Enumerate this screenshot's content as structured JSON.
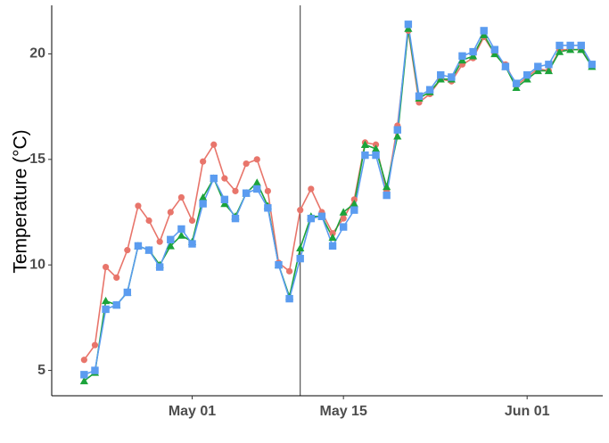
{
  "chart_data": {
    "type": "line",
    "title": "",
    "xlabel": "",
    "ylabel": "Temperature (°C)",
    "x_axis": {
      "type": "date",
      "range": [
        "2021-04-18",
        "2021-06-08"
      ],
      "ticks": [
        {
          "date": "2021-05-01",
          "label": "May 01"
        },
        {
          "date": "2021-05-15",
          "label": "May 15"
        },
        {
          "date": "2021-06-01",
          "label": "Jun 01"
        }
      ]
    },
    "y_axis": {
      "range": [
        3.8,
        22.3
      ],
      "ticks": [
        5,
        10,
        15,
        20
      ]
    },
    "grid": false,
    "legend": "none",
    "vertical_reference_line": {
      "date": "2021-05-11",
      "color": "#333333"
    },
    "series": [
      {
        "color": "#e8756b",
        "marker": "circle",
        "points": [
          [
            "2021-04-21",
            5.5
          ],
          [
            "2021-04-22",
            6.2
          ],
          [
            "2021-04-23",
            9.9
          ],
          [
            "2021-04-24",
            9.4
          ],
          [
            "2021-04-25",
            10.7
          ],
          [
            "2021-04-26",
            12.8
          ],
          [
            "2021-04-27",
            12.1
          ],
          [
            "2021-04-28",
            11.1
          ],
          [
            "2021-04-29",
            12.5
          ],
          [
            "2021-04-30",
            13.2
          ],
          [
            "2021-05-01",
            12.1
          ],
          [
            "2021-05-02",
            14.9
          ],
          [
            "2021-05-03",
            15.7
          ],
          [
            "2021-05-04",
            14.1
          ],
          [
            "2021-05-05",
            13.5
          ],
          [
            "2021-05-06",
            14.8
          ],
          [
            "2021-05-07",
            15.0
          ],
          [
            "2021-05-08",
            13.5
          ],
          [
            "2021-05-09",
            10.1
          ],
          [
            "2021-05-10",
            9.7
          ],
          [
            "2021-05-11",
            12.6
          ],
          [
            "2021-05-12",
            13.6
          ],
          [
            "2021-05-13",
            12.5
          ],
          [
            "2021-05-14",
            11.5
          ],
          [
            "2021-05-15",
            12.2
          ],
          [
            "2021-05-16",
            13.1
          ],
          [
            "2021-05-17",
            15.8
          ],
          [
            "2021-05-18",
            15.7
          ],
          [
            "2021-05-19",
            13.5
          ],
          [
            "2021-05-20",
            16.6
          ],
          [
            "2021-05-21",
            21.1
          ],
          [
            "2021-05-22",
            17.7
          ],
          [
            "2021-05-23",
            18.1
          ],
          [
            "2021-05-24",
            18.8
          ],
          [
            "2021-05-25",
            18.7
          ],
          [
            "2021-05-26",
            19.5
          ],
          [
            "2021-05-27",
            19.8
          ],
          [
            "2021-05-28",
            20.8
          ],
          [
            "2021-05-29",
            20.0
          ],
          [
            "2021-05-30",
            19.5
          ],
          [
            "2021-05-31",
            18.5
          ],
          [
            "2021-06-01",
            18.9
          ],
          [
            "2021-06-02",
            19.3
          ],
          [
            "2021-06-03",
            19.2
          ],
          [
            "2021-06-04",
            20.2
          ],
          [
            "2021-06-05",
            20.2
          ],
          [
            "2021-06-06",
            20.2
          ],
          [
            "2021-06-07",
            19.5
          ]
        ]
      },
      {
        "color": "#1ba33a",
        "marker": "triangle",
        "points": [
          [
            "2021-04-21",
            4.5
          ],
          [
            "2021-04-22",
            4.9
          ],
          [
            "2021-04-23",
            8.3
          ],
          [
            "2021-04-24",
            8.1
          ],
          [
            "2021-04-25",
            8.7
          ],
          [
            "2021-04-26",
            10.9
          ],
          [
            "2021-04-27",
            10.7
          ],
          [
            "2021-04-28",
            10.0
          ],
          [
            "2021-04-29",
            10.9
          ],
          [
            "2021-04-30",
            11.4
          ],
          [
            "2021-05-01",
            11.1
          ],
          [
            "2021-05-02",
            13.2
          ],
          [
            "2021-05-03",
            14.1
          ],
          [
            "2021-05-04",
            12.9
          ],
          [
            "2021-05-05",
            12.3
          ],
          [
            "2021-05-06",
            13.4
          ],
          [
            "2021-05-07",
            13.9
          ],
          [
            "2021-05-08",
            12.8
          ],
          [
            "2021-05-09",
            10.0
          ],
          [
            "2021-05-10",
            8.5
          ],
          [
            "2021-05-11",
            10.8
          ],
          [
            "2021-05-12",
            12.3
          ],
          [
            "2021-05-13",
            12.3
          ],
          [
            "2021-05-14",
            11.3
          ],
          [
            "2021-05-15",
            12.5
          ],
          [
            "2021-05-16",
            12.9
          ],
          [
            "2021-05-17",
            15.7
          ],
          [
            "2021-05-18",
            15.5
          ],
          [
            "2021-05-19",
            13.7
          ],
          [
            "2021-05-20",
            16.1
          ],
          [
            "2021-05-21",
            21.2
          ],
          [
            "2021-05-22",
            17.9
          ],
          [
            "2021-05-23",
            18.2
          ],
          [
            "2021-05-24",
            18.8
          ],
          [
            "2021-05-25",
            18.8
          ],
          [
            "2021-05-26",
            19.7
          ],
          [
            "2021-05-27",
            19.9
          ],
          [
            "2021-05-28",
            20.9
          ],
          [
            "2021-05-29",
            20.0
          ],
          [
            "2021-05-30",
            19.4
          ],
          [
            "2021-05-31",
            18.4
          ],
          [
            "2021-06-01",
            18.8
          ],
          [
            "2021-06-02",
            19.2
          ],
          [
            "2021-06-03",
            19.2
          ],
          [
            "2021-06-04",
            20.1
          ],
          [
            "2021-06-05",
            20.2
          ],
          [
            "2021-06-06",
            20.2
          ],
          [
            "2021-06-07",
            19.4
          ]
        ]
      },
      {
        "color": "#5b9cf0",
        "marker": "square",
        "points": [
          [
            "2021-04-21",
            4.8
          ],
          [
            "2021-04-22",
            5.0
          ],
          [
            "2021-04-23",
            7.9
          ],
          [
            "2021-04-24",
            8.1
          ],
          [
            "2021-04-25",
            8.7
          ],
          [
            "2021-04-26",
            10.9
          ],
          [
            "2021-04-27",
            10.7
          ],
          [
            "2021-04-28",
            9.9
          ],
          [
            "2021-04-29",
            11.2
          ],
          [
            "2021-04-30",
            11.7
          ],
          [
            "2021-05-01",
            11.0
          ],
          [
            "2021-05-02",
            12.9
          ],
          [
            "2021-05-03",
            14.1
          ],
          [
            "2021-05-04",
            13.1
          ],
          [
            "2021-05-05",
            12.2
          ],
          [
            "2021-05-06",
            13.4
          ],
          [
            "2021-05-07",
            13.6
          ],
          [
            "2021-05-08",
            12.7
          ],
          [
            "2021-05-09",
            10.0
          ],
          [
            "2021-05-10",
            8.4
          ],
          [
            "2021-05-11",
            10.3
          ],
          [
            "2021-05-12",
            12.2
          ],
          [
            "2021-05-13",
            12.3
          ],
          [
            "2021-05-14",
            10.9
          ],
          [
            "2021-05-15",
            11.8
          ],
          [
            "2021-05-16",
            12.6
          ],
          [
            "2021-05-17",
            15.2
          ],
          [
            "2021-05-18",
            15.2
          ],
          [
            "2021-05-19",
            13.3
          ],
          [
            "2021-05-20",
            16.4
          ],
          [
            "2021-05-21",
            21.4
          ],
          [
            "2021-05-22",
            18.0
          ],
          [
            "2021-05-23",
            18.3
          ],
          [
            "2021-05-24",
            19.0
          ],
          [
            "2021-05-25",
            18.9
          ],
          [
            "2021-05-26",
            19.9
          ],
          [
            "2021-05-27",
            20.1
          ],
          [
            "2021-05-28",
            21.1
          ],
          [
            "2021-05-29",
            20.2
          ],
          [
            "2021-05-30",
            19.4
          ],
          [
            "2021-05-31",
            18.6
          ],
          [
            "2021-06-01",
            19.0
          ],
          [
            "2021-06-02",
            19.4
          ],
          [
            "2021-06-03",
            19.5
          ],
          [
            "2021-06-04",
            20.4
          ],
          [
            "2021-06-05",
            20.4
          ],
          [
            "2021-06-06",
            20.4
          ],
          [
            "2021-06-07",
            19.5
          ]
        ]
      }
    ]
  }
}
